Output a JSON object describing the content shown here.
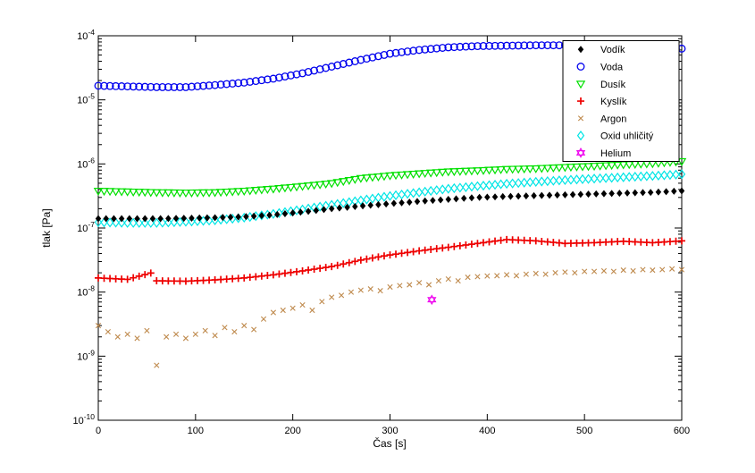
{
  "figure": {
    "background": "#ffffff",
    "axis_color": "#000000"
  },
  "chart_data": {
    "type": "scatter",
    "title": "",
    "xlabel": "Čas [s]",
    "ylabel": "tlak [Pa]",
    "grid": false,
    "legend_position": "northeast",
    "x_axis": {
      "min": 0,
      "max": 600,
      "ticks": [
        0,
        100,
        200,
        300,
        400,
        500,
        600
      ]
    },
    "y_axis": {
      "scale": "log",
      "base": "10",
      "min_exp": -10,
      "max_exp": -4,
      "tick_exponents": [
        -4,
        -5,
        -6,
        -7,
        -8,
        -9,
        -10
      ]
    },
    "series": [
      {
        "name": "Vodík",
        "marker": "point-diamond",
        "color": "#000000",
        "step": 8,
        "points": [
          [
            0,
            1.4e-07
          ],
          [
            30,
            1.4e-07
          ],
          [
            60,
            1.4e-07
          ],
          [
            90,
            1.42e-07
          ],
          [
            120,
            1.45e-07
          ],
          [
            150,
            1.5e-07
          ],
          [
            180,
            1.6e-07
          ],
          [
            210,
            1.78e-07
          ],
          [
            240,
            2e-07
          ],
          [
            270,
            2.2e-07
          ],
          [
            300,
            2.4e-07
          ],
          [
            330,
            2.6e-07
          ],
          [
            360,
            2.8e-07
          ],
          [
            390,
            3e-07
          ],
          [
            420,
            3.1e-07
          ],
          [
            450,
            3.2e-07
          ],
          [
            480,
            3.3e-07
          ],
          [
            510,
            3.4e-07
          ],
          [
            540,
            3.5e-07
          ],
          [
            570,
            3.6e-07
          ],
          [
            600,
            3.8e-07
          ]
        ]
      },
      {
        "name": "Voda",
        "marker": "circle",
        "color": "#0000ee",
        "step": 6,
        "points": [
          [
            0,
            1.66e-05
          ],
          [
            30,
            1.62e-05
          ],
          [
            60,
            1.58e-05
          ],
          [
            90,
            1.58e-05
          ],
          [
            120,
            1.7e-05
          ],
          [
            150,
            1.86e-05
          ],
          [
            180,
            2.14e-05
          ],
          [
            210,
            2.6e-05
          ],
          [
            240,
            3.3e-05
          ],
          [
            270,
            4.2e-05
          ],
          [
            300,
            5.25e-05
          ],
          [
            330,
            6e-05
          ],
          [
            360,
            6.6e-05
          ],
          [
            390,
            6.9e-05
          ],
          [
            420,
            7e-05
          ],
          [
            450,
            7.1e-05
          ],
          [
            480,
            7.1e-05
          ],
          [
            510,
            7e-05
          ],
          [
            540,
            6.8e-05
          ],
          [
            570,
            6.5e-05
          ],
          [
            600,
            6.3e-05
          ]
        ]
      },
      {
        "name": "Dusík",
        "marker": "triangle-down",
        "color": "#00e000",
        "step": 6,
        "points": [
          [
            0,
            3.8e-07
          ],
          [
            30,
            3.7e-07
          ],
          [
            60,
            3.6e-07
          ],
          [
            90,
            3.55e-07
          ],
          [
            120,
            3.6e-07
          ],
          [
            150,
            3.8e-07
          ],
          [
            180,
            4.1e-07
          ],
          [
            210,
            4.5e-07
          ],
          [
            240,
            5e-07
          ],
          [
            270,
            6e-07
          ],
          [
            300,
            6.6e-07
          ],
          [
            330,
            7.1e-07
          ],
          [
            360,
            7.6e-07
          ],
          [
            390,
            7.9e-07
          ],
          [
            420,
            8.3e-07
          ],
          [
            450,
            8.5e-07
          ],
          [
            480,
            8.9e-07
          ],
          [
            510,
            9.3e-07
          ],
          [
            540,
            9.8e-07
          ],
          [
            570,
            1.02e-06
          ],
          [
            600,
            1.1e-06
          ]
        ]
      },
      {
        "name": "Kyslík",
        "marker": "plus",
        "color": "#ee0000",
        "step": 6,
        "points": [
          [
            0,
            1.66e-08
          ],
          [
            30,
            1.58e-08
          ],
          [
            55,
            2e-08
          ],
          [
            60,
            1.5e-08
          ],
          [
            90,
            1.48e-08
          ],
          [
            120,
            1.55e-08
          ],
          [
            150,
            1.66e-08
          ],
          [
            180,
            1.86e-08
          ],
          [
            210,
            2.14e-08
          ],
          [
            240,
            2.5e-08
          ],
          [
            270,
            3.16e-08
          ],
          [
            300,
            3.8e-08
          ],
          [
            330,
            4.4e-08
          ],
          [
            360,
            5e-08
          ],
          [
            390,
            5.75e-08
          ],
          [
            420,
            6.6e-08
          ],
          [
            450,
            6.3e-08
          ],
          [
            480,
            5.75e-08
          ],
          [
            510,
            5.9e-08
          ],
          [
            540,
            6.2e-08
          ],
          [
            570,
            5.9e-08
          ],
          [
            600,
            6.3e-08
          ]
        ]
      },
      {
        "name": "Argon",
        "marker": "x",
        "color": "#bf8a4d",
        "step": null,
        "points": [
          [
            0,
            3e-09
          ],
          [
            10,
            2.4e-09
          ],
          [
            20,
            2e-09
          ],
          [
            30,
            2.2e-09
          ],
          [
            40,
            1.9e-09
          ],
          [
            50,
            2.5e-09
          ],
          [
            60,
            7.2e-10
          ],
          [
            70,
            2e-09
          ],
          [
            80,
            2.2e-09
          ],
          [
            90,
            1.9e-09
          ],
          [
            100,
            2.2e-09
          ],
          [
            110,
            2.5e-09
          ],
          [
            120,
            2.1e-09
          ],
          [
            130,
            2.8e-09
          ],
          [
            140,
            2.4e-09
          ],
          [
            150,
            3e-09
          ],
          [
            160,
            2.6e-09
          ],
          [
            170,
            3.8e-09
          ],
          [
            180,
            4.8e-09
          ],
          [
            190,
            5.2e-09
          ],
          [
            200,
            5.6e-09
          ],
          [
            210,
            6.3e-09
          ],
          [
            220,
            5.2e-09
          ],
          [
            230,
            7.1e-09
          ],
          [
            240,
            8.3e-09
          ],
          [
            250,
            8.9e-09
          ],
          [
            260,
            1e-08
          ],
          [
            270,
            1.07e-08
          ],
          [
            280,
            1.12e-08
          ],
          [
            290,
            1.05e-08
          ],
          [
            300,
            1.2e-08
          ],
          [
            310,
            1.26e-08
          ],
          [
            320,
            1.3e-08
          ],
          [
            330,
            1.4e-08
          ],
          [
            340,
            1.3e-08
          ],
          [
            350,
            1.5e-08
          ],
          [
            360,
            1.6e-08
          ],
          [
            370,
            1.5e-08
          ],
          [
            380,
            1.7e-08
          ],
          [
            390,
            1.74e-08
          ],
          [
            400,
            1.78e-08
          ],
          [
            410,
            1.8e-08
          ],
          [
            420,
            1.86e-08
          ],
          [
            430,
            1.8e-08
          ],
          [
            440,
            1.9e-08
          ],
          [
            450,
            1.95e-08
          ],
          [
            460,
            1.9e-08
          ],
          [
            470,
            2e-08
          ],
          [
            480,
            2.05e-08
          ],
          [
            490,
            2e-08
          ],
          [
            500,
            2.1e-08
          ],
          [
            510,
            2.1e-08
          ],
          [
            520,
            2.14e-08
          ],
          [
            530,
            2.1e-08
          ],
          [
            540,
            2.2e-08
          ],
          [
            550,
            2.14e-08
          ],
          [
            560,
            2.24e-08
          ],
          [
            570,
            2.2e-08
          ],
          [
            580,
            2.24e-08
          ],
          [
            590,
            2.3e-08
          ],
          [
            600,
            2.24e-08
          ]
        ]
      },
      {
        "name": "Oxid uhličitý",
        "marker": "diamond",
        "color": "#00e5e5",
        "step": 6,
        "points": [
          [
            0,
            1.23e-07
          ],
          [
            30,
            1.2e-07
          ],
          [
            60,
            1.2e-07
          ],
          [
            90,
            1.25e-07
          ],
          [
            120,
            1.32e-07
          ],
          [
            150,
            1.45e-07
          ],
          [
            180,
            1.66e-07
          ],
          [
            210,
            1.95e-07
          ],
          [
            240,
            2.3e-07
          ],
          [
            270,
            2.7e-07
          ],
          [
            300,
            3.16e-07
          ],
          [
            330,
            3.6e-07
          ],
          [
            360,
            4.1e-07
          ],
          [
            390,
            4.5e-07
          ],
          [
            420,
            4.9e-07
          ],
          [
            450,
            5.25e-07
          ],
          [
            480,
            5.6e-07
          ],
          [
            510,
            5.9e-07
          ],
          [
            540,
            6.2e-07
          ],
          [
            570,
            6.5e-07
          ],
          [
            600,
            6.9e-07
          ]
        ]
      },
      {
        "name": "Helium",
        "marker": "hexagram",
        "color": "#ee00ee",
        "step": null,
        "points": [
          [
            343,
            7.6e-09
          ]
        ]
      }
    ]
  }
}
